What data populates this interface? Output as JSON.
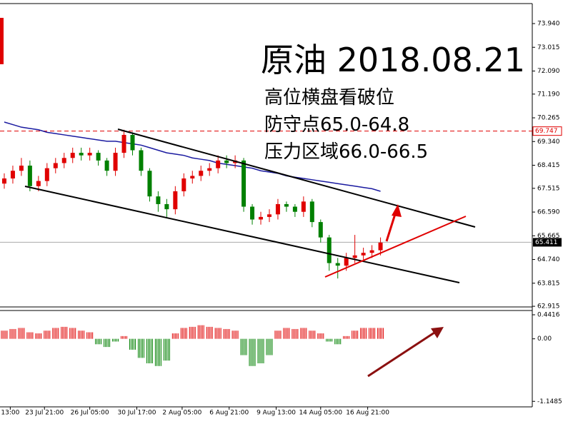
{
  "chart_data": {
    "type": "candlestick",
    "title": "原油 2018.08.21",
    "annotations": [
      "高位横盘看破位",
      "防守点65.0-64.8",
      "压力区域66.0-66.5"
    ],
    "up_color": "#e00000",
    "down_color": "#008000",
    "xlim": [
      -0.5,
      61.75
    ],
    "xticks": [
      {
        "value": 0.7,
        "label": "13:00"
      },
      {
        "value": 4.7,
        "label": "23 Jul 21:00"
      },
      {
        "value": 10,
        "label": "26 Jul 05:00"
      },
      {
        "value": 15.5,
        "label": "30 Jul 17:00"
      },
      {
        "value": 20.8,
        "label": "2 Aug 05:00"
      },
      {
        "value": 26.3,
        "label": "6 Aug 21:00"
      },
      {
        "value": 31.8,
        "label": "9 Aug 13:00"
      },
      {
        "value": 37,
        "label": "14 Aug 05:00"
      },
      {
        "value": 42.5,
        "label": "16 Aug 21:00"
      }
    ],
    "ylim": [
      62.89,
      74.72
    ],
    "yticks": [
      {
        "value": 73.94,
        "label": "73.940"
      },
      73.015,
      {
        "value": 72.09,
        "label": "72.090"
      },
      {
        "value": 71.19,
        "label": "71.190"
      },
      70.265,
      {
        "value": 69.34,
        "label": "69.340"
      },
      68.415,
      67.515,
      {
        "value": 66.59,
        "label": "66.590"
      },
      65.665,
      {
        "value": 64.74,
        "label": "64.740"
      },
      63.815,
      62.915
    ],
    "current_price": 65.411,
    "resistance_price": 69.747,
    "open": [
      67.7,
      67.9,
      68.2,
      68.4,
      67.6,
      67.8,
      68.3,
      68.5,
      68.7,
      68.9,
      68.8,
      68.9,
      68.6,
      68.2,
      68.9,
      69.6,
      69.0,
      68.2,
      67.2,
      66.9,
      66.7,
      67.4,
      67.9,
      68.0,
      68.2,
      68.3,
      68.6,
      68.5,
      68.6,
      66.8,
      66.3,
      66.4,
      66.5,
      66.9,
      66.8,
      66.6,
      67.0,
      66.2,
      65.6,
      64.6,
      64.5,
      64.8,
      64.9,
      65.0,
      65.1
    ],
    "high": [
      68.1,
      68.4,
      68.7,
      68.6,
      68.0,
      68.5,
      68.7,
      68.9,
      69.1,
      69.1,
      69.1,
      69.0,
      68.7,
      69.1,
      69.8,
      69.7,
      69.1,
      68.3,
      67.4,
      67.1,
      67.6,
      68.1,
      68.2,
      68.4,
      68.5,
      68.8,
      68.8,
      68.8,
      68.7,
      66.9,
      66.6,
      66.7,
      67.1,
      67.0,
      66.9,
      67.2,
      67.1,
      66.3,
      65.7,
      64.8,
      65.0,
      65.7,
      65.2,
      65.3,
      65.6
    ],
    "low": [
      67.5,
      67.7,
      68.0,
      67.4,
      67.4,
      67.6,
      68.1,
      68.3,
      68.5,
      68.6,
      68.6,
      68.4,
      68.0,
      68.0,
      68.7,
      68.8,
      68.0,
      67.0,
      66.6,
      66.4,
      66.5,
      67.2,
      67.7,
      67.8,
      68.0,
      68.1,
      68.3,
      68.3,
      66.6,
      66.1,
      66.1,
      66.2,
      66.3,
      66.6,
      66.4,
      66.4,
      66.0,
      65.4,
      64.3,
      64.0,
      64.3,
      64.6,
      64.7,
      64.8,
      64.9
    ],
    "close": [
      67.9,
      68.2,
      68.4,
      67.6,
      67.8,
      68.3,
      68.5,
      68.7,
      68.9,
      68.8,
      68.9,
      68.6,
      68.2,
      68.9,
      69.6,
      69.0,
      68.2,
      67.2,
      66.9,
      66.7,
      67.4,
      67.9,
      68.0,
      68.2,
      68.3,
      68.6,
      68.5,
      68.6,
      66.8,
      66.3,
      66.4,
      66.5,
      66.9,
      66.8,
      66.6,
      67.0,
      66.2,
      65.6,
      64.6,
      64.5,
      64.8,
      64.9,
      65.0,
      65.1,
      65.4
    ],
    "ma": {
      "color": "#1a1aa0",
      "values": [
        70.1,
        70.0,
        69.9,
        69.85,
        69.8,
        69.7,
        69.65,
        69.6,
        69.55,
        69.5,
        69.45,
        69.4,
        69.35,
        69.35,
        69.3,
        69.25,
        69.2,
        69.1,
        69.0,
        68.9,
        68.85,
        68.8,
        68.7,
        68.65,
        68.6,
        68.5,
        68.45,
        68.4,
        68.35,
        68.3,
        68.2,
        68.15,
        68.1,
        68.0,
        67.95,
        67.9,
        67.85,
        67.8,
        67.75,
        67.7,
        67.65,
        67.6,
        67.55,
        67.5,
        67.4
      ]
    },
    "indicator": {
      "ylim": [
        -1.25,
        0.52
      ],
      "yticks": [
        0.4416,
        {
          "value": 0,
          "label": "0.00"
        },
        -1.1485
      ],
      "values": [
        0.15,
        0.18,
        0.2,
        0.12,
        0.1,
        0.15,
        0.2,
        0.22,
        0.2,
        0.15,
        0.12,
        -0.1,
        -0.15,
        -0.05,
        0.05,
        -0.2,
        -0.35,
        -0.45,
        -0.5,
        -0.4,
        0.1,
        0.2,
        0.22,
        0.25,
        0.22,
        0.2,
        0.18,
        0.15,
        -0.3,
        -0.5,
        -0.45,
        -0.3,
        0.15,
        0.2,
        0.18,
        0.2,
        0.15,
        0.1,
        -0.05,
        -0.1,
        0.05,
        0.15,
        0.2,
        0.2,
        0.2
      ]
    }
  }
}
